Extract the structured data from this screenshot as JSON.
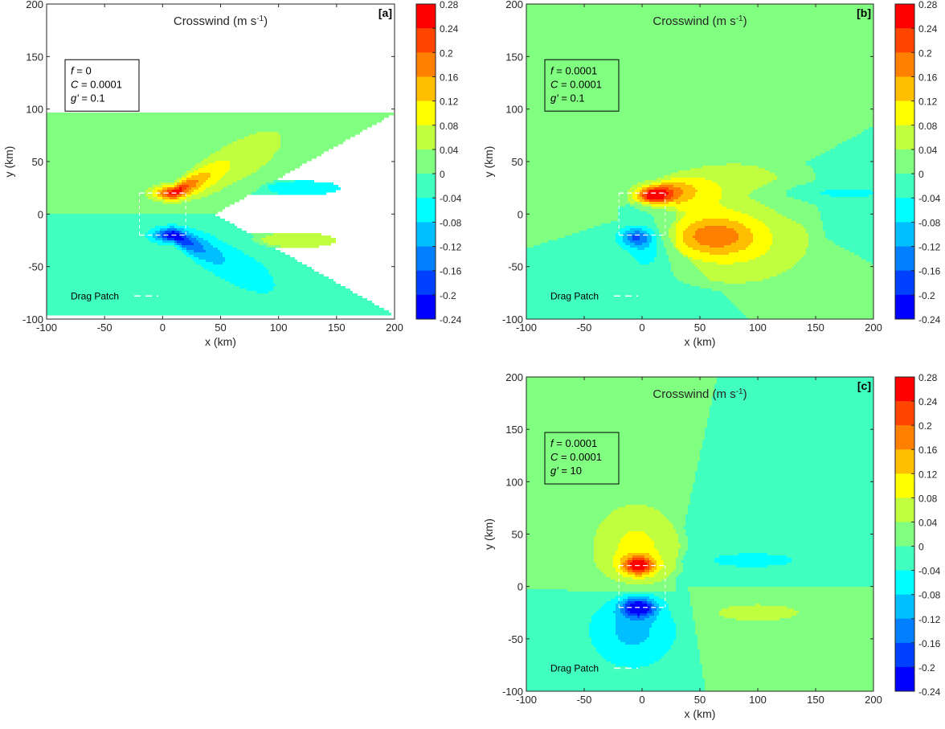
{
  "chart_data": [
    {
      "type": "contour",
      "panel_label": "[a]",
      "title": "Crosswind (m s-1)",
      "title_main": "Crosswind (m s",
      "title_sup": "-1",
      "title_end": ")",
      "xlabel": "x (km)",
      "ylabel": "y (km)",
      "xlim": [
        -100,
        200
      ],
      "ylim": [
        -100,
        100
      ],
      "ylim_display": [
        -100,
        200
      ],
      "xticks": [
        -100,
        -50,
        0,
        50,
        100,
        150,
        200
      ],
      "yticks": [
        -100,
        -50,
        0,
        50,
        100,
        150,
        200
      ],
      "params": [
        {
          "sym": "f",
          "value": "= 0"
        },
        {
          "sym": "C",
          "value": "= 0.0001"
        },
        {
          "sym": "g'",
          "value": "= 0.1"
        }
      ],
      "legend_label": "Drag Patch",
      "drag_patch": {
        "x": [
          -20,
          20
        ],
        "y": [
          -20,
          20
        ]
      },
      "features": [
        {
          "sign": "pos",
          "cx": 12,
          "cy": 20,
          "peak": 0.24,
          "sx": 22,
          "sy": 12,
          "tail": 55,
          "tail_dir": [
            1,
            0.9
          ]
        },
        {
          "sign": "neg",
          "cx": 12,
          "cy": -20,
          "peak": -0.2,
          "sx": 22,
          "sy": 12,
          "tail": 55,
          "tail_dir": [
            1,
            -0.9
          ]
        },
        {
          "sign": "neg",
          "cx": 120,
          "cy": 25,
          "peak": -0.04,
          "sx": 40,
          "sy": 8
        },
        {
          "sign": "pos",
          "cx": 115,
          "cy": -25,
          "peak": 0.04,
          "sx": 42,
          "sy": 9
        }
      ],
      "background": {
        "upper": 0.02,
        "lower": -0.02,
        "wedge": true,
        "symmetric_line_y": 0
      }
    },
    {
      "type": "contour",
      "panel_label": "[b]",
      "title_main": "Crosswind (m s",
      "title_sup": "-1",
      "title_end": ")",
      "xlabel": "x (km)",
      "ylabel": "y (km)",
      "xlim": [
        -100,
        200
      ],
      "ylim_display": [
        -100,
        200
      ],
      "xticks": [
        -100,
        -50,
        0,
        50,
        100,
        150,
        200
      ],
      "yticks": [
        -100,
        -50,
        0,
        50,
        100,
        150,
        200
      ],
      "params": [
        {
          "sym": "f",
          "value": "= 0.0001"
        },
        {
          "sym": "C",
          "value": "= 0.0001"
        },
        {
          "sym": "g'",
          "value": "= 0.1"
        }
      ],
      "legend_label": "Drag Patch",
      "drag_patch": {
        "x": [
          -20,
          20
        ],
        "y": [
          -20,
          20
        ]
      }
    },
    {
      "type": "contour",
      "panel_label": "[c]",
      "title_main": "Crosswind (m s",
      "title_sup": "-1",
      "title_end": ")",
      "xlabel": "x (km)",
      "ylabel": "y (km)",
      "xlim": [
        -100,
        200
      ],
      "ylim_display": [
        -100,
        200
      ],
      "xticks": [
        -100,
        -50,
        0,
        50,
        100,
        150,
        200
      ],
      "yticks": [
        -100,
        -50,
        0,
        50,
        100,
        150,
        200
      ],
      "params": [
        {
          "sym": "f",
          "value": "= 0.0001"
        },
        {
          "sym": "C",
          "value": "= 0.0001"
        },
        {
          "sym": "g'",
          "value": "= 10"
        }
      ],
      "legend_label": "Drag Patch",
      "drag_patch": {
        "x": [
          -20,
          20
        ],
        "y": [
          -20,
          20
        ]
      }
    }
  ],
  "colorbar": {
    "ticks": [
      0.28,
      0.24,
      0.2,
      0.16,
      0.12,
      0.08,
      0.04,
      0,
      -0.04,
      -0.08,
      -0.12,
      -0.16,
      -0.2,
      -0.24
    ],
    "tick_labels": [
      "0.28",
      "0.24",
      "0.2",
      "0.16",
      "0.12",
      "0.08",
      "0.04",
      "0",
      "-0.04",
      "-0.08",
      "-0.12",
      "-0.16",
      "-0.2",
      "-0.24"
    ],
    "levels_colors": [
      {
        "range": [
          0.24,
          0.28
        ],
        "color": "#ff0000"
      },
      {
        "range": [
          0.2,
          0.24
        ],
        "color": "#ff4500"
      },
      {
        "range": [
          0.16,
          0.2
        ],
        "color": "#ff8000"
      },
      {
        "range": [
          0.12,
          0.16
        ],
        "color": "#ffbf00"
      },
      {
        "range": [
          0.08,
          0.12
        ],
        "color": "#ffff00"
      },
      {
        "range": [
          0.04,
          0.08
        ],
        "color": "#bfff40"
      },
      {
        "range": [
          0,
          0.04
        ],
        "color": "#80ff80"
      },
      {
        "range": [
          -0.04,
          0
        ],
        "color": "#40ffbf"
      },
      {
        "range": [
          -0.08,
          -0.04
        ],
        "color": "#00ffff"
      },
      {
        "range": [
          -0.12,
          -0.08
        ],
        "color": "#00bfff"
      },
      {
        "range": [
          -0.16,
          -0.12
        ],
        "color": "#0080ff"
      },
      {
        "range": [
          -0.2,
          -0.16
        ],
        "color": "#0040ff"
      },
      {
        "range": [
          -0.24,
          -0.2
        ],
        "color": "#0000ff"
      }
    ]
  }
}
